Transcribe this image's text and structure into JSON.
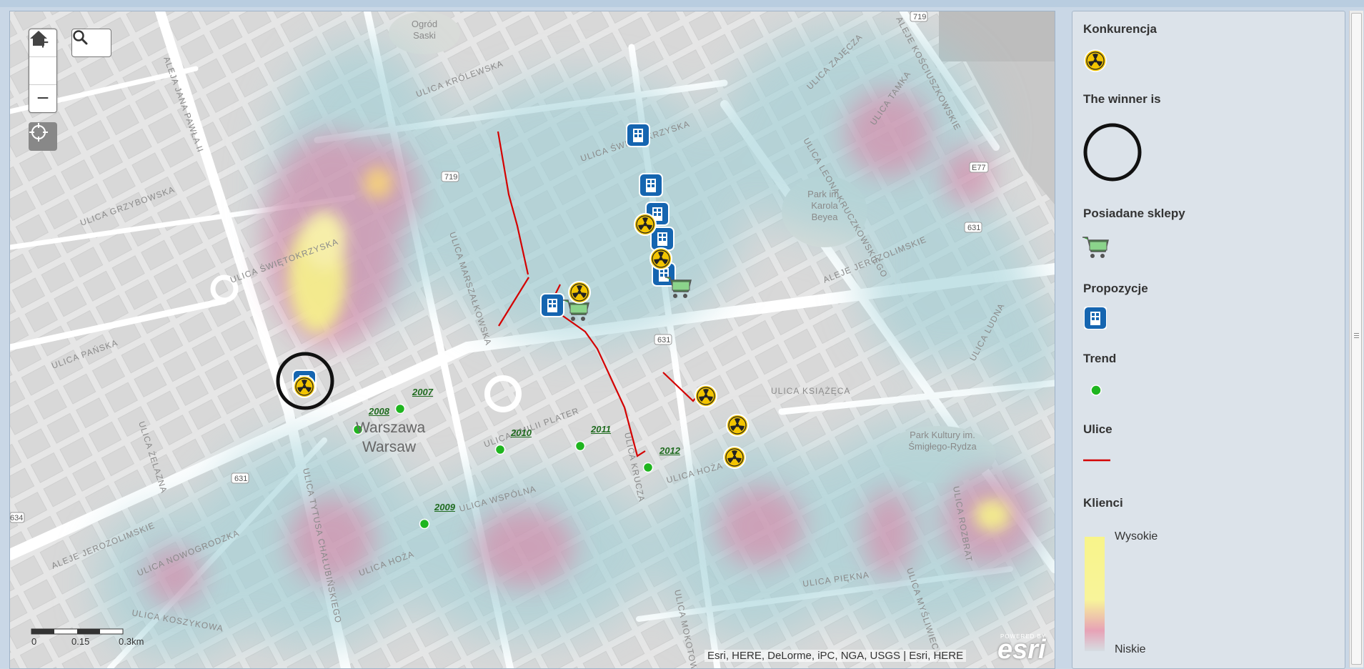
{
  "map": {
    "city_label_pl": "Warszawa",
    "city_label_en": "Warsaw",
    "street_labels": [
      "ALEJA JANA PAWŁA II",
      "ULICA GRZYBOWSKA",
      "ULICA ŚWIĘTOKRZYSKA",
      "ULICA PAŃSKA",
      "ULICA ŻELAZNA",
      "ALEJE JEROZOLIMSKIE",
      "ULICA NOWOGRODZKA",
      "ULICA KOSZYKOWA",
      "ULICA EMILII PLATER",
      "ULICA MARSZAŁKOWSKA",
      "ULICA KRÓLEWSKA",
      "ULICA ŚWIĘTOKRZYSKA",
      "ULICA WSPÓLNA",
      "ULICA HOŻA",
      "ULICA KRUCZA",
      "ULICA HOŻA",
      "ULICA KSIĄŻĘCA",
      "ULICA MOKOTOWSKA",
      "ULICA PIĘKNA",
      "ULICA LEONA KRUCZKOWSKIEGO",
      "ALEJE JEROZOLIMSKIE",
      "ULICA ZAJĘCZA",
      "ULICA TAMKA",
      "ALEJE KOŚCIUSZKOWSKIE",
      "ULICA ROZBRAT",
      "ULICA MYŚLIWIECKA",
      "ULICA LUDNA",
      "ULICA TYTUSA CHAŁUBIŃSKIEGO"
    ],
    "poi_labels": {
      "ogrod": "Ogród\nSaski",
      "park_beyea": "Park im.\nKarola\nBeyea",
      "park_smigly": "Park Kultury im.\nŚmigłego-Rydza"
    },
    "route_shields": [
      "719",
      "719",
      "631",
      "631",
      "E77",
      "631",
      "634"
    ],
    "trend_years": [
      "2007",
      "2008",
      "2009",
      "2010",
      "2011",
      "2012"
    ],
    "scale_ticks": [
      "0",
      "0.15",
      "0.3km"
    ],
    "attribution": "Esri, HERE, DeLorme, iPC, NGA, USGS | Esri, HERE",
    "logo_text": "esri",
    "logo_small": "POWERED BY"
  },
  "controls": {
    "zoom_in": "+",
    "zoom_out": "−"
  },
  "legend": {
    "konkurencja": "Konkurencja",
    "winner": "The winner is",
    "posiadane": "Posiadane sklepy",
    "propozycje": "Propozycje",
    "trend": "Trend",
    "ulice": "Ulice",
    "klienci": "Klienci",
    "wysokie": "Wysokie",
    "niskie": "Niskie"
  },
  "colors": {
    "route_red": "#d40000",
    "trend_green": "#1fb51f",
    "proposal_blue": "#1565b0",
    "competition_yellow": "#f2c400",
    "heat_yellow": "#f7f28a",
    "heat_pink": "#e07aa0",
    "heat_cyan": "#a9d3d9"
  }
}
